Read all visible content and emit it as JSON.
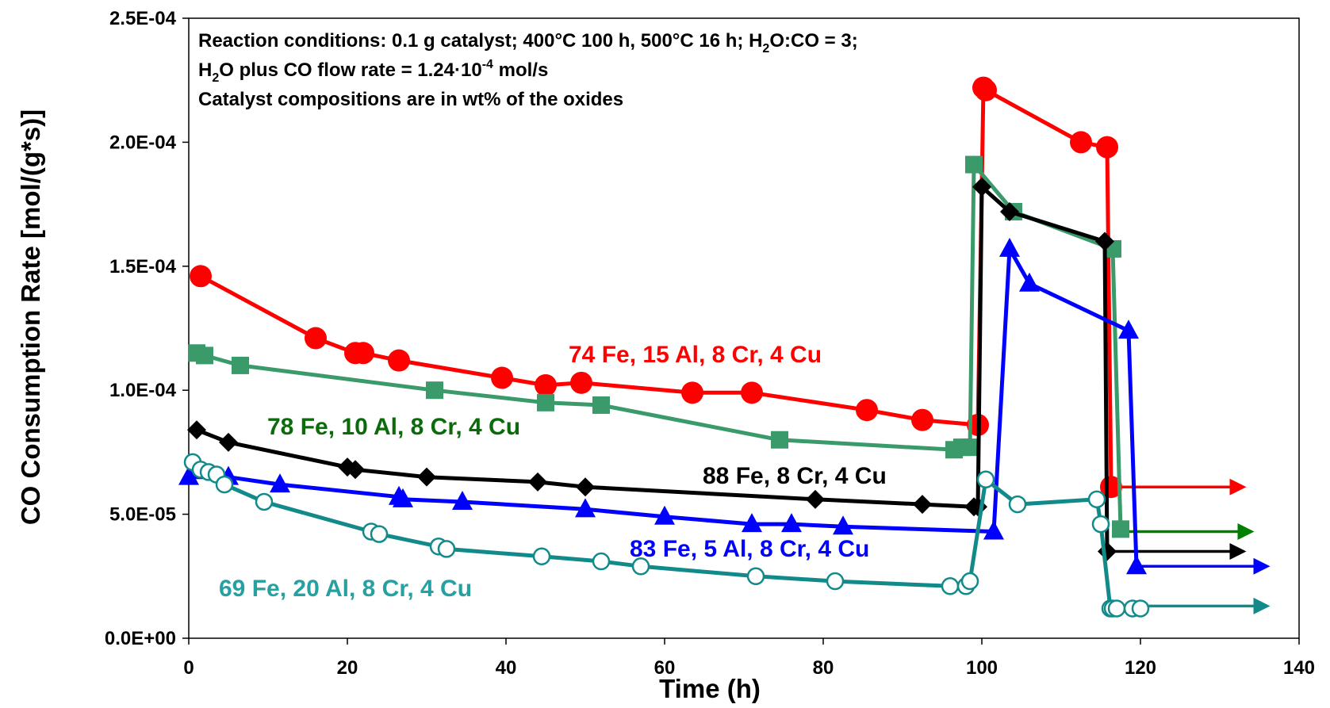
{
  "chart_data": {
    "type": "line",
    "xlabel": "Time (h)",
    "ylabel": "CO Consumption Rate [mol/(g*s)]",
    "xlim": [
      0,
      140
    ],
    "ylim": [
      0,
      0.00025
    ],
    "x_ticks": [
      "0",
      "20",
      "40",
      "60",
      "80",
      "100",
      "120",
      "140"
    ],
    "y_ticks": [
      "0.0E+00",
      "5.0E-05",
      "1.0E-04",
      "1.5E-04",
      "2.0E-04",
      "2.5E-04"
    ],
    "grid": false,
    "notes": {
      "line1_a": "Reaction conditions:  0.1 g catalyst; 400°C 100 h, 500°C 16 h; H",
      "line1_sub": "2",
      "line1_b": "O:CO = 3;",
      "line2_a": "H",
      "line2_sub": "2",
      "line2_b": "O plus CO flow rate = 1.24·10",
      "line2_sup": "-4",
      "line2_c": " mol/s",
      "line3": "Catalyst compositions are in wt% of the oxides"
    },
    "series": [
      {
        "name": "74 Fe, 15 Al, 8 Cr, 4 Cu",
        "color": "#ff0000",
        "marker": "circle",
        "x": [
          1.5,
          16,
          21,
          22,
          26.5,
          39.5,
          45,
          49.5,
          63.5,
          71,
          85.5,
          92.5,
          99.5,
          100.2,
          100.5,
          112.5,
          115.8,
          116.3
        ],
        "y": [
          0.000146,
          0.000121,
          0.000115,
          0.000115,
          0.000112,
          0.000105,
          0.000102,
          0.000103,
          9.9e-05,
          9.9e-05,
          9.2e-05,
          8.8e-05,
          8.6e-05,
          0.000222,
          0.000221,
          0.0002,
          0.000198,
          6.1e-05
        ],
        "arrow": {
          "x": [
            116.5,
            133
          ],
          "y": [
            6.1e-05,
            6.1e-05
          ]
        }
      },
      {
        "name": "78 Fe, 10 Al, 8 Cr, 4 Cu",
        "color": "#3a9a6a",
        "label_color": "#0b6b0b",
        "marker": "square",
        "x": [
          1,
          2,
          6.5,
          31,
          45,
          52,
          74.5,
          96.5,
          97.5,
          98.5,
          99,
          104,
          116.5,
          117.5
        ],
        "y": [
          0.000115,
          0.000114,
          0.00011,
          0.0001,
          9.5e-05,
          9.4e-05,
          8e-05,
          7.6e-05,
          7.7e-05,
          7.7e-05,
          0.000191,
          0.000172,
          0.000157,
          4.4e-05
        ],
        "arrow": {
          "x": [
            117.5,
            134
          ],
          "y": [
            4.3e-05,
            4.3e-05
          ]
        },
        "arrow_color": "#008000"
      },
      {
        "name": "88 Fe, 8 Cr, 4 Cu",
        "color": "#000000",
        "marker": "diamond",
        "x": [
          1,
          5,
          20,
          21,
          30,
          44,
          50,
          79,
          92.5,
          99,
          99.5,
          100,
          103.5,
          115.5,
          115.8
        ],
        "y": [
          8.4e-05,
          7.9e-05,
          6.9e-05,
          6.8e-05,
          6.5e-05,
          6.3e-05,
          6.1e-05,
          5.6e-05,
          5.4e-05,
          5.3e-05,
          5.3e-05,
          0.000182,
          0.000172,
          0.00016,
          3.5e-05
        ],
        "arrow": {
          "x": [
            115.8,
            133
          ],
          "y": [
            3.5e-05,
            3.5e-05
          ]
        }
      },
      {
        "name": "83 Fe, 5 Al, 8 Cr, 4 Cu",
        "color": "#0000ff",
        "marker": "triangle",
        "x": [
          0,
          5,
          11.5,
          26.5,
          27,
          34.5,
          50,
          60,
          71,
          76,
          82.5,
          101.5,
          103.5,
          106,
          118.5,
          119.5
        ],
        "y": [
          6.5e-05,
          6.5e-05,
          6.2e-05,
          5.7e-05,
          5.6e-05,
          5.5e-05,
          5.2e-05,
          4.9e-05,
          4.6e-05,
          4.6e-05,
          4.5e-05,
          4.3e-05,
          0.000157,
          0.000143,
          0.000124,
          2.9e-05
        ],
        "arrow": {
          "x": [
            119.5,
            136
          ],
          "y": [
            2.9e-05,
            2.9e-05
          ]
        }
      },
      {
        "name": "69 Fe, 20 Al, 8 Cr, 4 Cu",
        "color": "#138a8a",
        "label_color": "#26a0a0",
        "marker": "open-circle",
        "x": [
          0.5,
          1.5,
          2.5,
          3.5,
          4.5,
          9.5,
          23,
          24,
          31.5,
          32.5,
          44.5,
          52,
          57,
          71.5,
          81.5,
          96,
          98,
          98.5,
          100.5,
          104.5,
          114.5,
          115,
          116.2,
          116.5,
          117,
          119,
          120
        ],
        "y": [
          7.1e-05,
          6.8e-05,
          6.7e-05,
          6.6e-05,
          6.2e-05,
          5.5e-05,
          4.3e-05,
          4.2e-05,
          3.7e-05,
          3.6e-05,
          3.3e-05,
          3.1e-05,
          2.9e-05,
          2.5e-05,
          2.3e-05,
          2.1e-05,
          2.1e-05,
          2.3e-05,
          6.4e-05,
          5.4e-05,
          5.6e-05,
          4.6e-05,
          1.2e-05,
          1.2e-05,
          1.2e-05,
          1.2e-05,
          1.2e-05
        ],
        "arrow": {
          "x": [
            120,
            136
          ],
          "y": [
            1.3e-05,
            1.3e-05
          ]
        }
      }
    ]
  }
}
